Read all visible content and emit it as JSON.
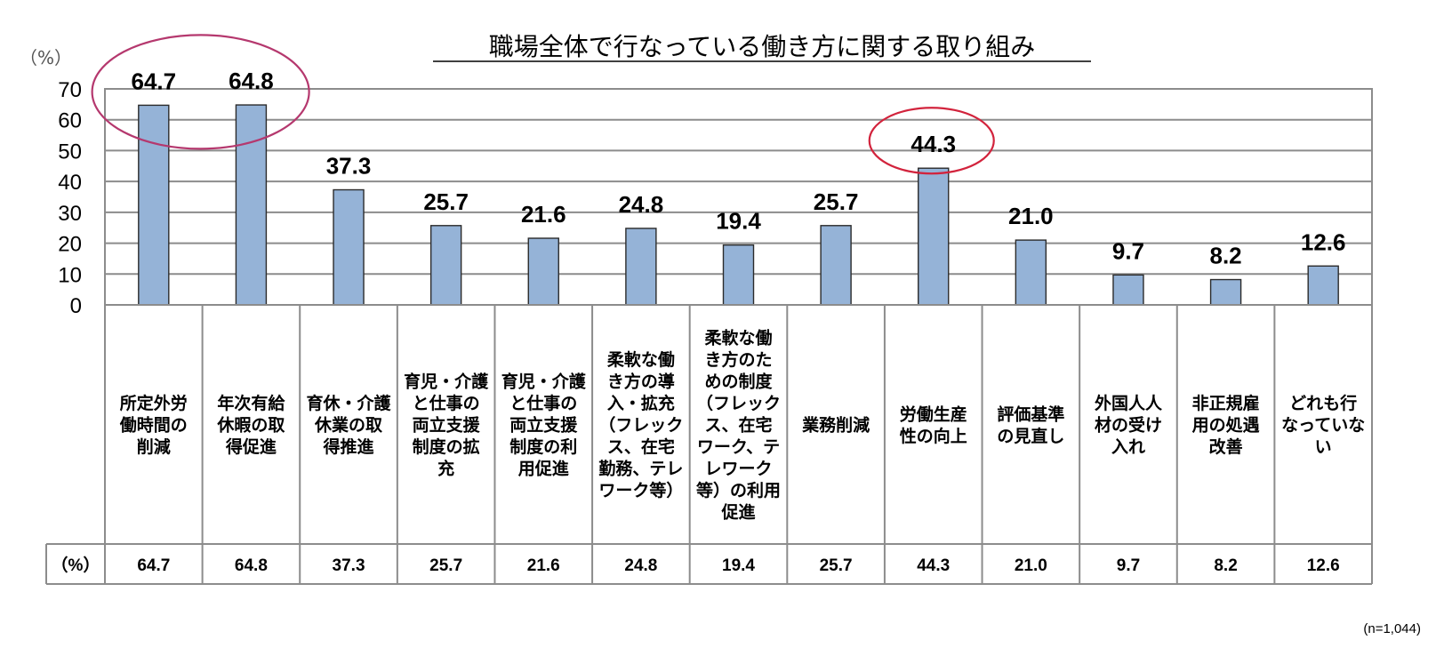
{
  "chart_data": {
    "type": "bar",
    "title": "職場全体で行なっている働き方に関する取り組み",
    "y_unit": "（%）",
    "table_row_label": "（%）",
    "note": "(n=1,044)",
    "ylim": [
      0,
      70
    ],
    "yticks": [
      "0",
      "10",
      "20",
      "30",
      "40",
      "50",
      "60",
      "70"
    ],
    "grid": true,
    "bar_color": "#95b3d7",
    "highlight_color": "#d2233c",
    "highlight_color_left": "#b5386e",
    "categories": [
      [
        "所定外労",
        "働時間の",
        "削減"
      ],
      [
        "年次有給",
        "休暇の取",
        "得促進"
      ],
      [
        "育休・介護",
        "休業の取",
        "得推進"
      ],
      [
        "育児・介護",
        "と仕事の",
        "両立支援",
        "制度の拡",
        "充"
      ],
      [
        "育児・介護",
        "と仕事の",
        "両立支援",
        "制度の利",
        "用促進"
      ],
      [
        "柔軟な働",
        "き方の導",
        "入・拡充",
        "（フレック",
        "ス、在宅",
        "勤務、テレ",
        "ワーク等）"
      ],
      [
        "柔軟な働",
        "き方のた",
        "めの制度",
        "（フレック",
        "ス、在宅",
        "ワーク、テ",
        "レワーク",
        "等）の利用",
        "促進"
      ],
      [
        "業務削減"
      ],
      [
        "労働生産",
        "性の向上"
      ],
      [
        "評価基準",
        "の見直し"
      ],
      [
        "外国人人",
        "材の受け",
        "入れ"
      ],
      [
        "非正規雇",
        "用の処遇",
        "改善"
      ],
      [
        "どれも行",
        "なっていな",
        "い"
      ]
    ],
    "values": [
      64.7,
      64.8,
      37.3,
      25.7,
      21.6,
      24.8,
      19.4,
      25.7,
      44.3,
      21.0,
      9.7,
      8.2,
      12.6
    ],
    "value_labels": [
      "64.7",
      "64.8",
      "37.3",
      "25.7",
      "21.6",
      "24.8",
      "19.4",
      "25.7",
      "44.3",
      "21.0",
      "9.7",
      "8.2",
      "12.6"
    ],
    "highlighted": [
      0,
      1,
      8
    ]
  }
}
